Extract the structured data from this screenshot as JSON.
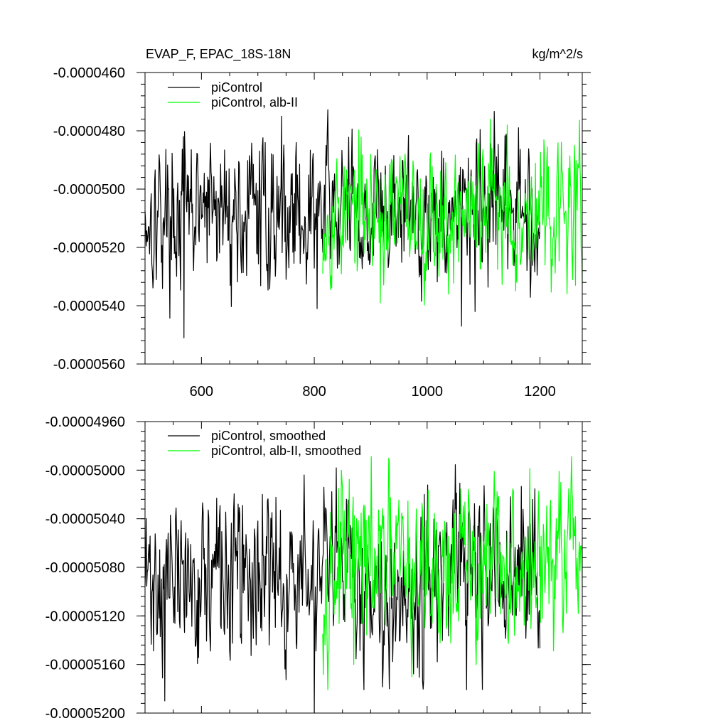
{
  "chart_data": [
    {
      "type": "line",
      "title": "EVAP_F, EPAC_18S-18N",
      "units": "kg/m^2/s",
      "xlim": [
        500,
        1275
      ],
      "ylim": [
        -5.6e-05,
        -4.6e-05
      ],
      "x_ticks": [
        600,
        800,
        1000,
        1200
      ],
      "x_tick_labels": [
        "600",
        "800",
        "1000",
        "1200"
      ],
      "y_ticks": [
        -4.6e-05,
        -4.8e-05,
        -5e-05,
        -5.2e-05,
        -5.4e-05,
        -5.6e-05
      ],
      "y_tick_labels": [
        "-0.0000460",
        "-0.0000480",
        "-0.0000500",
        "-0.0000520",
        "-0.0000540",
        "-0.0000560"
      ],
      "legend": "top-left",
      "series": [
        {
          "name": "piControl",
          "color": "#000000",
          "x_start": 500,
          "x_end": 1200,
          "mean": -5.08e-05,
          "noise": 1.1e-06,
          "seed": 17,
          "extremes": [
            [
              569,
              -5.51e-05
            ],
            [
              742,
              -4.75e-05
            ],
            [
              821,
              -4.85e-05
            ],
            [
              1061,
              -5.47e-05
            ],
            [
              1085,
              -5.42e-05
            ],
            [
              805,
              -5.41e-05
            ]
          ]
        },
        {
          "name": "piControl, alb-II",
          "color": "#00ff00",
          "x_start": 815,
          "x_end": 1275,
          "mean": -5.08e-05,
          "noise": 1e-06,
          "seed": 53,
          "extremes": [
            [
              1112,
              -4.76e-05
            ],
            [
              1142,
              -4.78e-05
            ],
            [
              1038,
              -5.36e-05
            ],
            [
              917,
              -5.39e-05
            ],
            [
              1263,
              -5.33e-05
            ]
          ]
        }
      ]
    },
    {
      "type": "line",
      "xlim": [
        500,
        1275
      ],
      "ylim": [
        -5.2e-05,
        -4.96e-05
      ],
      "x_ticks": [
        600,
        800,
        1000,
        1200
      ],
      "y_ticks": [
        -4.96e-05,
        -5e-05,
        -5.04e-05,
        -5.08e-05,
        -5.12e-05,
        -5.16e-05,
        -5.2e-05
      ],
      "y_tick_labels": [
        "-0.00004960",
        "-0.00005000",
        "-0.00005040",
        "-0.00005080",
        "-0.00005120",
        "-0.00005160",
        "-0.00005200"
      ],
      "legend": "top-left",
      "series": [
        {
          "name": "piControl, smoothed",
          "color": "#000000",
          "x_start": 500,
          "x_end": 1200,
          "mean": -5.09e-05,
          "noise": 3e-07,
          "seed": 71,
          "extremes": [
            [
              535,
              -5.19e-05
            ],
            [
              800,
              -5.2e-05
            ],
            [
              708,
              -5.02e-05
            ],
            [
              995,
              -5.02e-05
            ],
            [
              933,
              -5.18e-05
            ]
          ]
        },
        {
          "name": "piControl, alb-II, smoothed",
          "color": "#00ff00",
          "x_start": 815,
          "x_end": 1275,
          "mean": -5.08e-05,
          "noise": 3e-07,
          "seed": 97,
          "extremes": [
            [
              848,
              -5e-05
            ],
            [
              1237,
              -5.01e-05
            ],
            [
              973,
              -5.17e-05
            ],
            [
              870,
              -5.16e-05
            ]
          ]
        }
      ]
    }
  ]
}
